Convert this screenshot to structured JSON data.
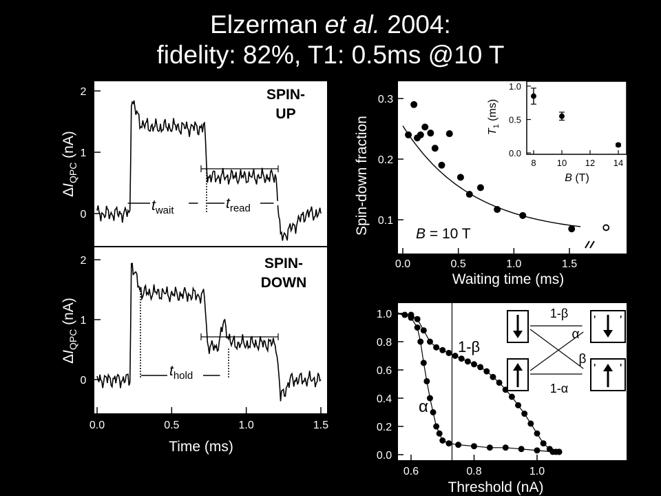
{
  "title": {
    "author": "Elzerman",
    "etal": "et al.",
    "year": "2004:",
    "line2": "fidelity: 82%, T1: 0.5ms @10 T"
  },
  "chart_data": [
    {
      "id": "traces",
      "type": "line",
      "xlabel": "Time (ms)",
      "ylabel": "ΔI_QPC (nA)",
      "x_ticks": [
        "0.0",
        "0.5",
        "1.0",
        "1.5"
      ],
      "xlim": [
        0,
        1.5
      ],
      "panels": [
        {
          "label_line1": "SPIN-",
          "label_line2": "UP",
          "ylim": [
            -0.45,
            2.45
          ],
          "y_ticks": [
            "0",
            "1",
            "2"
          ],
          "series": [
            {
              "x": [
                0,
                0.22,
                0.23,
                0.26,
                0.3,
                0.4,
                0.5,
                0.6,
                0.7,
                0.72,
                0.74,
                0.8,
                1.0,
                1.2,
                1.23,
                1.3,
                1.4,
                1.5
              ],
              "values": [
                0.0,
                0.0,
                1.9,
                1.65,
                1.45,
                1.4,
                1.42,
                1.4,
                1.4,
                1.4,
                0.6,
                0.6,
                0.6,
                0.6,
                -0.4,
                -0.25,
                0.0,
                0.0
              ]
            }
          ],
          "annotations": {
            "t_wait": "wait",
            "t_read": "read",
            "t": "t"
          }
        },
        {
          "label_line1": "SPIN-",
          "label_line2": "DOWN",
          "ylim": [
            -0.45,
            2.45
          ],
          "y_ticks": [
            "0",
            "1",
            "2"
          ],
          "series": [
            {
              "x": [
                0,
                0.22,
                0.23,
                0.26,
                0.3,
                0.4,
                0.5,
                0.6,
                0.7,
                0.72,
                0.74,
                0.8,
                0.85,
                0.9,
                1.0,
                1.2,
                1.23,
                1.3,
                1.4,
                1.5
              ],
              "values": [
                0.0,
                0.0,
                1.95,
                1.7,
                1.45,
                1.45,
                1.42,
                1.42,
                1.4,
                1.4,
                0.6,
                0.5,
                0.95,
                0.6,
                0.6,
                0.6,
                -0.3,
                0.0,
                0.0,
                0.0
              ]
            }
          ],
          "annotations": {
            "t_hold": "hold",
            "t": "t"
          }
        }
      ]
    },
    {
      "id": "decay",
      "type": "scatter",
      "xlabel": "Waiting time (ms)",
      "ylabel": "Spin-down fraction",
      "x_ticks": [
        "0.0",
        "0.5",
        "1.0",
        "1.5"
      ],
      "y_ticks": [
        "0.1",
        "0.2",
        "0.3"
      ],
      "xlim": [
        -0.05,
        1.95
      ],
      "ylim": [
        0.045,
        0.345
      ],
      "annotation_B": "B",
      "annotation_val": " = 10 T",
      "points": {
        "x": [
          0.05,
          0.1,
          0.13,
          0.16,
          0.2,
          0.25,
          0.29,
          0.35,
          0.42,
          0.52,
          0.6,
          0.7,
          0.85,
          1.08,
          1.52
        ],
        "y": [
          0.24,
          0.29,
          0.235,
          0.24,
          0.253,
          0.243,
          0.218,
          0.19,
          0.242,
          0.17,
          0.142,
          0.153,
          0.117,
          0.107,
          0.085
        ]
      },
      "outlier": {
        "x": 1.83,
        "y": 0.087
      },
      "fit_x_range": [
        0.0,
        1.6
      ],
      "inset": {
        "xlabel_var": "B",
        "xlabel_unit": " (T)",
        "ylabel_var": "T",
        "ylabel_sub": "1",
        "ylabel_unit": " (ms)",
        "x_ticks": [
          "8",
          "10",
          "12",
          "14"
        ],
        "y_ticks": [
          "0.0",
          "0.5",
          "1.0"
        ],
        "xlim": [
          7.5,
          14.5
        ],
        "ylim": [
          0,
          1.05
        ],
        "points": {
          "x": [
            8,
            10,
            14
          ],
          "y": [
            0.85,
            0.55,
            0.12
          ],
          "err": [
            0.12,
            0.06,
            0.02
          ]
        }
      }
    },
    {
      "id": "fidelity",
      "type": "scatter",
      "xlabel": "Threshold (nA)",
      "x_ticks": [
        "0.6",
        "0.8",
        "1.0"
      ],
      "y_ticks": [
        "0.0",
        "0.2",
        "0.4",
        "0.6",
        "0.8",
        "1.0"
      ],
      "xlim": [
        0.53,
        1.22
      ],
      "ylim": [
        -0.03,
        1.03
      ],
      "threshold_line_x": 0.73,
      "series": [
        {
          "name": "α",
          "x": [
            0.55,
            0.58,
            0.6,
            0.62,
            0.63,
            0.64,
            0.65,
            0.66,
            0.67,
            0.68,
            0.69,
            0.7,
            0.72,
            0.75,
            0.8,
            0.85,
            0.9,
            0.95,
            1.0,
            1.05,
            1.07
          ],
          "values": [
            1.0,
            0.99,
            0.97,
            0.9,
            0.8,
            0.65,
            0.52,
            0.4,
            0.3,
            0.2,
            0.15,
            0.1,
            0.08,
            0.07,
            0.06,
            0.05,
            0.05,
            0.04,
            0.03,
            0.02,
            0.02
          ]
        },
        {
          "name": "1-β",
          "x": [
            0.55,
            0.6,
            0.62,
            0.64,
            0.66,
            0.68,
            0.7,
            0.72,
            0.74,
            0.76,
            0.78,
            0.8,
            0.82,
            0.84,
            0.86,
            0.88,
            0.9,
            0.92,
            0.94,
            0.96,
            0.98,
            1.0,
            1.02,
            1.04,
            1.06,
            1.07
          ],
          "values": [
            1.0,
            0.99,
            0.96,
            0.88,
            0.8,
            0.76,
            0.74,
            0.72,
            0.7,
            0.68,
            0.66,
            0.64,
            0.62,
            0.59,
            0.55,
            0.51,
            0.46,
            0.41,
            0.35,
            0.29,
            0.22,
            0.15,
            0.08,
            0.04,
            0.02,
            0.02
          ]
        }
      ],
      "labels": {
        "alpha": "α",
        "one_minus_beta": "1-β"
      },
      "diagram": {
        "top_label": "1-β",
        "alpha_label": "α",
        "beta_label": "β",
        "bottom_label": "1-α",
        "quote": "'",
        "left_top": "down-arrow-icon",
        "left_bottom": "up-arrow-icon",
        "right_top": "down-arrow-icon",
        "right_bottom": "up-arrow-icon"
      }
    }
  ]
}
